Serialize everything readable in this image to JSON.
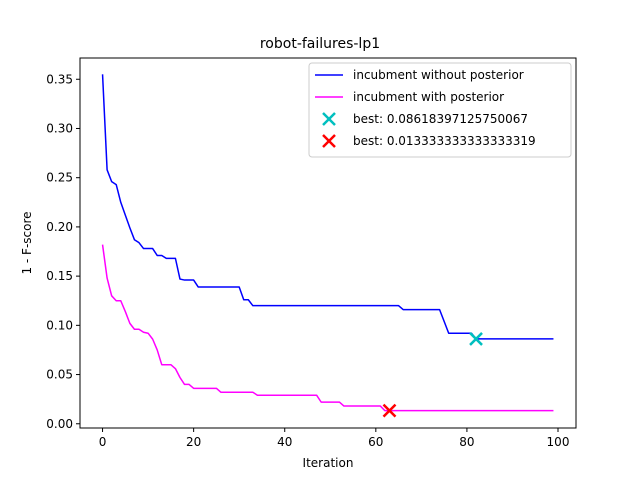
{
  "chart_data": {
    "type": "line",
    "title": "robot-failures-lp1",
    "xlabel": "Iteration",
    "ylabel": "1 - F-score",
    "xlim": [
      -4.95,
      103.95
    ],
    "ylim": [
      -0.0043,
      0.3716
    ],
    "xticks": [
      0,
      20,
      40,
      60,
      80,
      100
    ],
    "yticks": [
      0.0,
      0.05,
      0.1,
      0.15,
      0.2,
      0.25,
      0.3,
      0.35
    ],
    "grid": false,
    "legend_position": "top-right",
    "series": [
      {
        "name": "incubment without posterior",
        "color": "#0000ff",
        "x": [
          0,
          1,
          2,
          3,
          4,
          5,
          6,
          7,
          8,
          9,
          11,
          12,
          13,
          14,
          16,
          17,
          18,
          19,
          20,
          21,
          23,
          24,
          25,
          26,
          29,
          30,
          31,
          32,
          33,
          34,
          40,
          50,
          59,
          60,
          65,
          66,
          70,
          74,
          75,
          76,
          80,
          81,
          82,
          99
        ],
        "y": [
          0.355,
          0.258,
          0.246,
          0.243,
          0.225,
          0.212,
          0.199,
          0.187,
          0.184,
          0.178,
          0.178,
          0.171,
          0.171,
          0.168,
          0.168,
          0.147,
          0.146,
          0.146,
          0.146,
          0.139,
          0.139,
          0.139,
          0.139,
          0.139,
          0.139,
          0.139,
          0.126,
          0.126,
          0.12,
          0.12,
          0.12,
          0.12,
          0.12,
          0.12,
          0.12,
          0.116,
          0.116,
          0.116,
          0.104,
          0.092,
          0.092,
          0.092,
          0.0862,
          0.0862
        ]
      },
      {
        "name": "incubment with posterior",
        "color": "#ff00ff",
        "x": [
          0,
          1,
          2,
          3,
          4,
          5,
          6,
          7,
          8,
          9,
          10,
          11,
          12,
          13,
          14,
          15,
          16,
          17,
          18,
          19,
          20,
          21,
          22,
          23,
          24,
          25,
          26,
          27,
          28,
          30,
          32,
          33,
          34,
          40,
          47,
          48,
          49,
          51,
          52,
          53,
          55,
          60,
          61,
          62,
          63,
          99
        ],
        "y": [
          0.182,
          0.148,
          0.13,
          0.125,
          0.125,
          0.114,
          0.102,
          0.096,
          0.096,
          0.093,
          0.092,
          0.086,
          0.075,
          0.06,
          0.06,
          0.06,
          0.056,
          0.047,
          0.04,
          0.04,
          0.036,
          0.036,
          0.036,
          0.036,
          0.036,
          0.036,
          0.032,
          0.032,
          0.032,
          0.032,
          0.032,
          0.032,
          0.029,
          0.029,
          0.029,
          0.022,
          0.022,
          0.022,
          0.022,
          0.018,
          0.018,
          0.018,
          0.018,
          0.0133,
          0.0133,
          0.0133
        ]
      }
    ],
    "markers": [
      {
        "label": "best: 0.08618397125750067",
        "x": 82,
        "y": 0.08618397125750067,
        "color": "#00bfbf",
        "marker": "x"
      },
      {
        "label": "best: 0.013333333333333319",
        "x": 63,
        "y": 0.013333333333333319,
        "color": "#ff0000",
        "marker": "x"
      }
    ]
  }
}
